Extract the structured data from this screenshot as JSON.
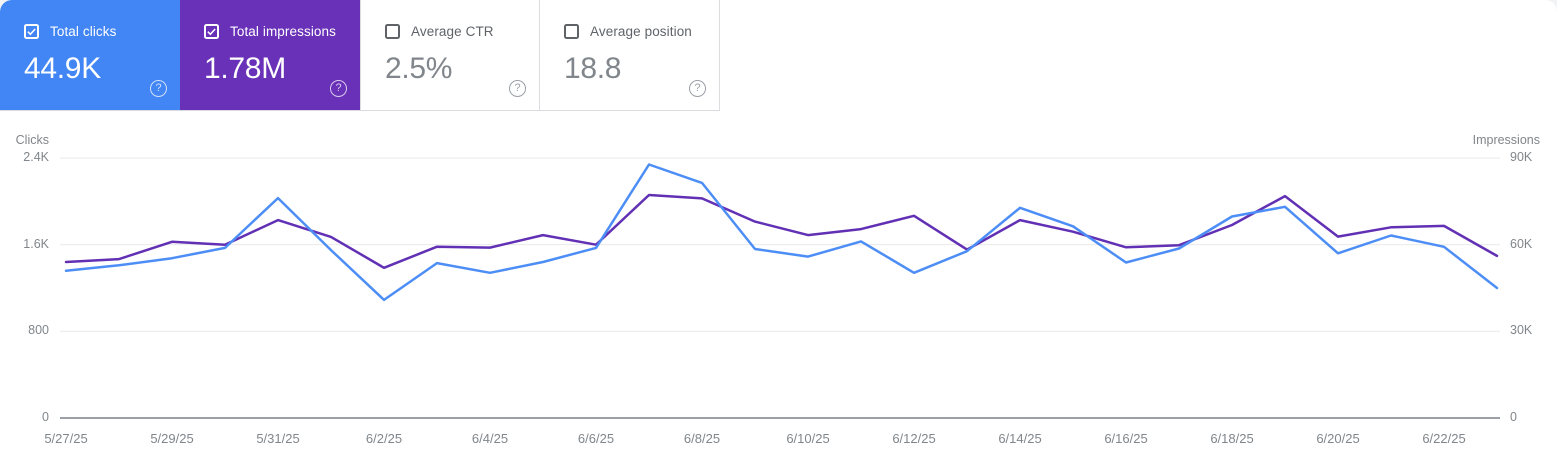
{
  "glyphs": {
    "help": "?"
  },
  "cards": [
    {
      "label": "Total clicks",
      "value": "44.9K",
      "checked": true,
      "bg": "#4285f4"
    },
    {
      "label": "Total impressions",
      "value": "1.78M",
      "checked": true,
      "bg": "#6930b8"
    },
    {
      "label": "Average CTR",
      "value": "2.5%",
      "checked": false,
      "bg": null
    },
    {
      "label": "Average position",
      "value": "18.8",
      "checked": false,
      "bg": null
    }
  ],
  "chart_data": {
    "type": "line",
    "x": [
      "5/27/25",
      "5/28/25",
      "5/29/25",
      "5/30/25",
      "5/31/25",
      "6/1/25",
      "6/2/25",
      "6/3/25",
      "6/4/25",
      "6/5/25",
      "6/6/25",
      "6/7/25",
      "6/8/25",
      "6/9/25",
      "6/10/25",
      "6/11/25",
      "6/12/25",
      "6/13/25",
      "6/14/25",
      "6/15/25",
      "6/16/25",
      "6/17/25",
      "6/18/25",
      "6/19/25",
      "6/20/25",
      "6/21/25",
      "6/22/25",
      "6/23/25"
    ],
    "x_tick_labels": [
      "5/27/25",
      "5/29/25",
      "5/31/25",
      "6/2/25",
      "6/4/25",
      "6/6/25",
      "6/8/25",
      "6/10/25",
      "6/12/25",
      "6/14/25",
      "6/16/25",
      "6/18/25",
      "6/20/25",
      "6/22/25"
    ],
    "series": [
      {
        "name": "Clicks",
        "axis": "left",
        "color": "#4d8ef6",
        "values": [
          1360,
          1410,
          1475,
          1570,
          2030,
          1550,
          1090,
          1430,
          1340,
          1440,
          1570,
          2340,
          2170,
          1560,
          1490,
          1630,
          1340,
          1540,
          1940,
          1770,
          1435,
          1565,
          1860,
          1950,
          1520,
          1685,
          1580,
          1200
        ]
      },
      {
        "name": "Impressions",
        "axis": "right",
        "color": "#6130b4",
        "values": [
          54000,
          55000,
          61000,
          60000,
          68500,
          62700,
          52000,
          59300,
          59000,
          63300,
          60000,
          77200,
          76000,
          68000,
          63300,
          65400,
          70000,
          58300,
          68500,
          64500,
          59100,
          59800,
          66800,
          76800,
          62800,
          66000,
          66500,
          56100
        ]
      }
    ],
    "left_axis": {
      "title": "Clicks",
      "max": 2400,
      "tick_labels_top_down": [
        "2.4K",
        "1.6K",
        "800",
        "0"
      ]
    },
    "right_axis": {
      "title": "Impressions",
      "max": 90000,
      "tick_labels_top_down": [
        "90K",
        "60K",
        "30K",
        "0"
      ]
    },
    "grid": true,
    "legend_position": "none"
  }
}
